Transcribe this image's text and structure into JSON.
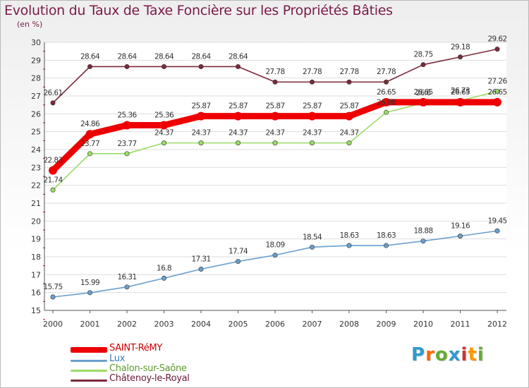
{
  "chart_data": {
    "type": "line",
    "title": "Evolution du Taux de Taxe Foncière sur les Propriétés Bâties",
    "ylabel": "(en %)",
    "xlabel": "",
    "categories": [
      "2000",
      "2001",
      "2002",
      "2003",
      "2004",
      "2005",
      "2006",
      "2007",
      "2008",
      "2009",
      "2010",
      "2011",
      "2012"
    ],
    "ylim": [
      15,
      30
    ],
    "yticks": [
      "15",
      "16",
      "17",
      "18",
      "19",
      "20",
      "21",
      "22",
      "23",
      "24",
      "25",
      "26",
      "27",
      "28",
      "29",
      "30"
    ],
    "series": [
      {
        "name": "SAINT-RéMY",
        "color": "#ee0000",
        "values": [
          22.83,
          24.86,
          25.36,
          25.36,
          25.87,
          25.87,
          25.87,
          25.87,
          25.87,
          26.65,
          26.65,
          26.65,
          26.65
        ],
        "labels": [
          "22.83",
          "24.86",
          "25.36",
          "25.36",
          "25.87",
          "25.87",
          "25.87",
          "25.87",
          "25.87",
          "26.65",
          "26.65",
          "26.65",
          "26.65"
        ]
      },
      {
        "name": "Lux",
        "color": "#6a9fcd",
        "values": [
          15.75,
          15.99,
          16.31,
          16.8,
          17.31,
          17.74,
          18.09,
          18.54,
          18.63,
          18.63,
          18.88,
          19.16,
          19.45
        ],
        "labels": [
          "15.75",
          "15.99",
          "16.31",
          "16.8",
          "17.31",
          "17.74",
          "18.09",
          "18.54",
          "18.63",
          "18.63",
          "18.88",
          "19.16",
          "19.45"
        ]
      },
      {
        "name": "Chalon-sur-Saône",
        "color": "#99dd66",
        "values": [
          21.74,
          23.77,
          23.77,
          24.37,
          24.37,
          24.37,
          24.37,
          24.37,
          24.37,
          26.08,
          26.6,
          26.73,
          27.26
        ],
        "labels": [
          "21.74",
          "23.77",
          "23.77",
          "24.37",
          "24.37",
          "24.37",
          "24.37",
          "24.37",
          "24.37",
          "26.08",
          "26.6",
          "26.73",
          "27.26"
        ]
      },
      {
        "name": "Châtenoy-le-Royal",
        "color": "#7b2a3a",
        "values": [
          26.61,
          28.64,
          28.64,
          28.64,
          28.64,
          28.64,
          27.78,
          27.78,
          27.78,
          27.78,
          28.75,
          29.18,
          29.62
        ],
        "labels": [
          "26.61",
          "28.64",
          "28.64",
          "28.64",
          "28.64",
          "28.64",
          "27.78",
          "27.78",
          "27.78",
          "27.78",
          "28.75",
          "29.18",
          "29.62"
        ]
      }
    ]
  },
  "logo": {
    "letters": [
      "P",
      "r",
      "o",
      "x",
      "i",
      "t",
      "i"
    ],
    "colors": [
      "#3399cc",
      "#ff6600",
      "#66aa33",
      "#3399cc",
      "#cc3333",
      "#ff9900",
      "#66aa33"
    ]
  }
}
